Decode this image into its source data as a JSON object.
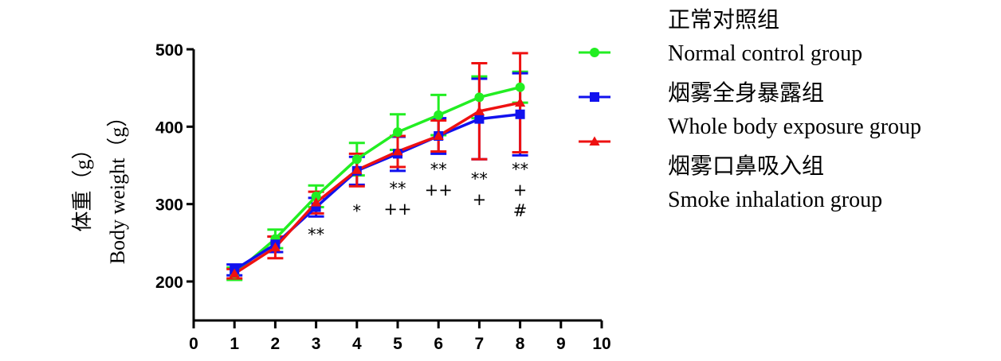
{
  "chart_data": {
    "type": "line",
    "title": "",
    "xlabel": "",
    "ylabel_cn": "体重（g）",
    "ylabel_en": "Body weight（g）",
    "xlim": [
      0,
      10
    ],
    "ylim": [
      150,
      500
    ],
    "x_ticks": [
      0,
      1,
      2,
      3,
      4,
      5,
      6,
      7,
      8,
      9,
      10
    ],
    "y_ticks": [
      200,
      300,
      400,
      500
    ],
    "grid": false,
    "legend_position": "right",
    "x": [
      1,
      2,
      3,
      4,
      5,
      6,
      7,
      8
    ],
    "series": [
      {
        "name_cn": "正常对照组",
        "name_en": "Normal control group",
        "color": "#22ee22",
        "marker": "circle",
        "values": [
          210,
          255,
          310,
          358,
          393,
          415,
          438,
          451
        ],
        "errors": [
          8,
          12,
          14,
          21,
          23,
          26,
          27,
          20
        ]
      },
      {
        "name_cn": "烟雾全身暴露组",
        "name_en": "Whole body exposure group",
        "color": "#1111ee",
        "marker": "square",
        "values": [
          215,
          248,
          296,
          343,
          365,
          388,
          410,
          416
        ],
        "errors": [
          7,
          10,
          12,
          18,
          22,
          23,
          52,
          53
        ]
      },
      {
        "name_cn": "烟雾口鼻吸入组",
        "name_en": "Smoke inhalation group",
        "color": "#ee1111",
        "marker": "triangle",
        "values": [
          210,
          244,
          302,
          344,
          368,
          388,
          420,
          431
        ],
        "errors": [
          6,
          14,
          14,
          21,
          20,
          20,
          62,
          64
        ]
      }
    ],
    "annotations": [
      {
        "x": 3,
        "lines": [
          "**"
        ]
      },
      {
        "x": 4,
        "lines": [
          "*"
        ]
      },
      {
        "x": 5,
        "lines": [
          "**",
          "++"
        ]
      },
      {
        "x": 6,
        "lines": [
          "**",
          "++"
        ]
      },
      {
        "x": 7,
        "lines": [
          "**",
          "+"
        ]
      },
      {
        "x": 8,
        "lines": [
          "**",
          "+",
          "#"
        ]
      }
    ]
  }
}
